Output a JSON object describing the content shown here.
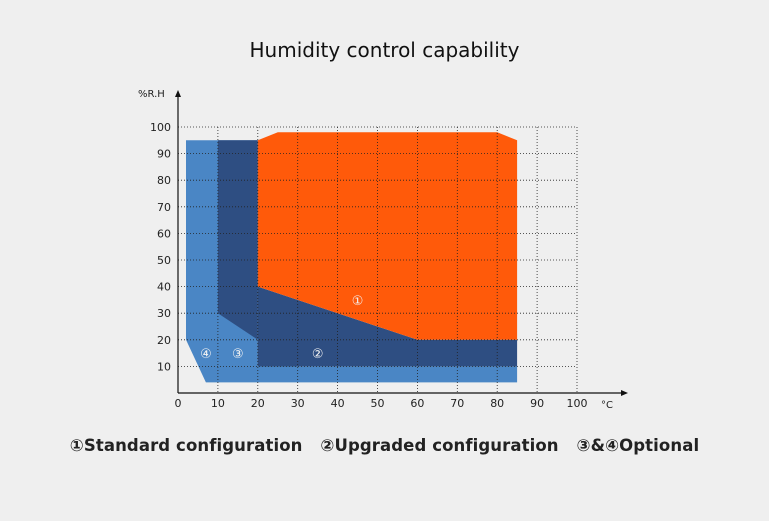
{
  "chart_data": {
    "type": "area",
    "title": "Humidity control capability",
    "ylabel": "%R.H",
    "xlabel": "°C",
    "xlim": [
      0,
      100
    ],
    "ylim": [
      0,
      100
    ],
    "xticks": [
      0,
      10,
      20,
      30,
      40,
      50,
      60,
      70,
      80,
      90,
      100
    ],
    "yticks": [
      10,
      20,
      30,
      40,
      50,
      60,
      70,
      80,
      90,
      100
    ],
    "grid": true,
    "regions": [
      {
        "label": "④",
        "color": "#4a86c5",
        "points": [
          [
            2,
            95
          ],
          [
            20,
            95
          ],
          [
            20,
            10
          ],
          [
            85,
            10
          ],
          [
            85,
            4
          ],
          [
            7,
            4
          ],
          [
            2,
            20
          ]
        ]
      },
      {
        "label": "③",
        "color": "#2e4e82",
        "points": [
          [
            10,
            95
          ],
          [
            20,
            95
          ],
          [
            20,
            10
          ],
          [
            30,
            10
          ],
          [
            10,
            30
          ]
        ]
      },
      {
        "label": "②",
        "color": "#2e4e82",
        "points": [
          [
            20,
            40
          ],
          [
            60,
            20
          ],
          [
            85,
            20
          ],
          [
            85,
            10
          ],
          [
            20,
            10
          ]
        ]
      },
      {
        "label": "①",
        "color": "#ff5a0a",
        "points": [
          [
            20,
            40
          ],
          [
            20,
            95
          ],
          [
            25,
            98
          ],
          [
            80,
            98
          ],
          [
            85,
            95
          ],
          [
            85,
            20
          ],
          [
            60,
            20
          ]
        ]
      }
    ],
    "region_label_positions": [
      {
        "label": "①",
        "x": 45,
        "y": 35
      },
      {
        "label": "②",
        "x": 35,
        "y": 15
      },
      {
        "label": "③",
        "x": 15,
        "y": 15
      },
      {
        "label": "④",
        "x": 7,
        "y": 15
      }
    ],
    "legend": [
      "①Standard configuration",
      "②Upgraded configuration",
      "③&④Optional"
    ]
  }
}
